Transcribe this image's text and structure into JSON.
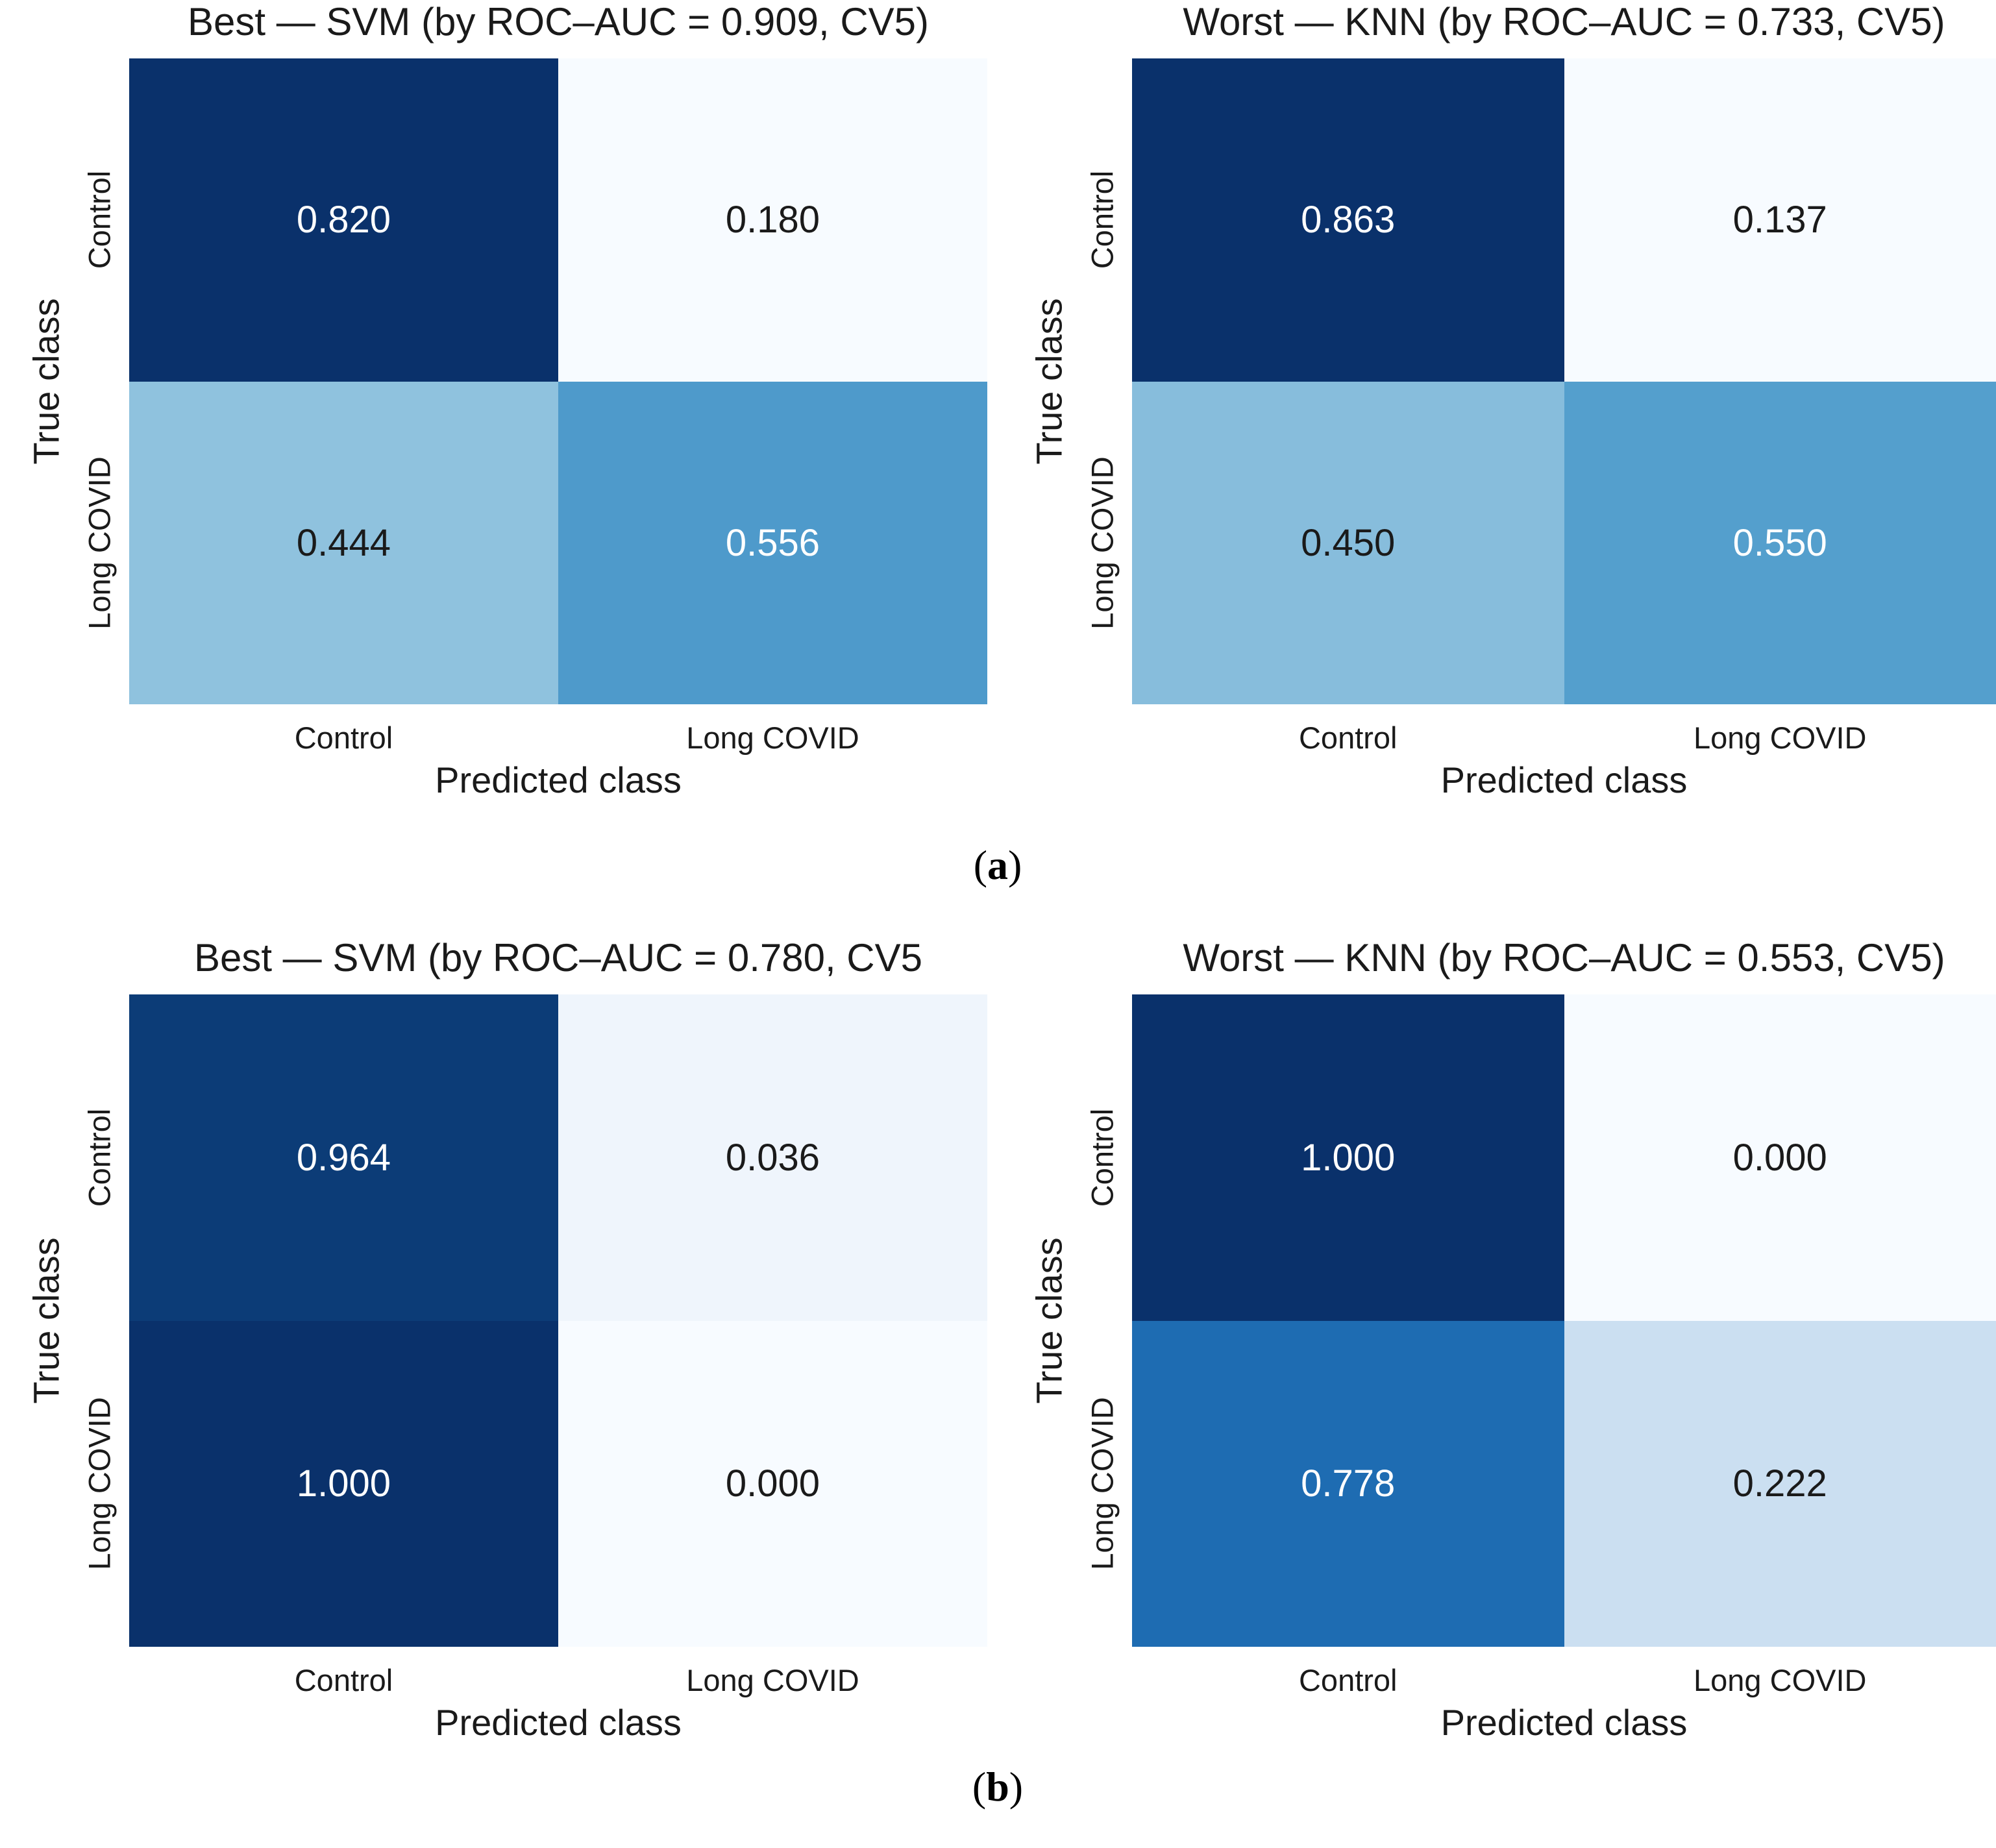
{
  "figure": {
    "background": "#ffffff",
    "panels": [
      {
        "open_paren": "(",
        "letter": "a",
        "close_paren": ")"
      },
      {
        "open_paren": "(",
        "letter": "b",
        "close_paren": ")"
      }
    ]
  },
  "chart_data": [
    {
      "type": "heatmap",
      "panel": "a",
      "position": "left",
      "title": "Best — SVM (by ROC–AUC = 0.909, CV5)",
      "xlabel": "Predicted class",
      "ylabel": "True class",
      "x_categories": [
        "Control",
        "Long COVID"
      ],
      "y_categories": [
        "Control",
        "Long COVID"
      ],
      "values": [
        [
          0.82,
          0.18
        ],
        [
          0.444,
          0.556
        ]
      ],
      "value_labels": [
        [
          "0.820",
          "0.180"
        ],
        [
          "0.444",
          "0.556"
        ]
      ],
      "cell_colors": [
        [
          "#0a316b",
          "#f7fbff"
        ],
        [
          "#8fc2de",
          "#4e9acb"
        ]
      ],
      "text_colors": [
        [
          "#ffffff",
          "#1a1a1a"
        ],
        [
          "#1a1a1a",
          "#ffffff"
        ]
      ],
      "colormap": "Blues",
      "grid": false,
      "legend": false
    },
    {
      "type": "heatmap",
      "panel": "a",
      "position": "right",
      "title": "Worst — KNN (by ROC–AUC = 0.733, CV5)",
      "xlabel": "Predicted class",
      "ylabel": "True class",
      "x_categories": [
        "Control",
        "Long COVID"
      ],
      "y_categories": [
        "Control",
        "Long COVID"
      ],
      "values": [
        [
          0.863,
          0.137
        ],
        [
          0.45,
          0.55
        ]
      ],
      "value_labels": [
        [
          "0.863",
          "0.137"
        ],
        [
          "0.450",
          "0.550"
        ]
      ],
      "cell_colors": [
        [
          "#0a316b",
          "#f7fbff"
        ],
        [
          "#87bddc",
          "#549fcd"
        ]
      ],
      "text_colors": [
        [
          "#ffffff",
          "#1a1a1a"
        ],
        [
          "#1a1a1a",
          "#ffffff"
        ]
      ],
      "colormap": "Blues",
      "grid": false,
      "legend": false
    },
    {
      "type": "heatmap",
      "panel": "b",
      "position": "left",
      "title": "Best — SVM (by ROC–AUC = 0.780, CV5",
      "xlabel": "Predicted class",
      "ylabel": "True class",
      "x_categories": [
        "Control",
        "Long COVID"
      ],
      "y_categories": [
        "Control",
        "Long COVID"
      ],
      "values": [
        [
          0.964,
          0.036
        ],
        [
          1.0,
          0.0
        ]
      ],
      "value_labels": [
        [
          "0.964",
          "0.036"
        ],
        [
          "1.000",
          "0.000"
        ]
      ],
      "cell_colors": [
        [
          "#0c3c77",
          "#eff5fc"
        ],
        [
          "#0a316b",
          "#f7fbff"
        ]
      ],
      "text_colors": [
        [
          "#ffffff",
          "#1a1a1a"
        ],
        [
          "#ffffff",
          "#1a1a1a"
        ]
      ],
      "colormap": "Blues",
      "grid": false,
      "legend": false
    },
    {
      "type": "heatmap",
      "panel": "b",
      "position": "right",
      "title": "Worst — KNN (by ROC–AUC = 0.553, CV5)",
      "xlabel": "Predicted class",
      "ylabel": "True class",
      "x_categories": [
        "Control",
        "Long COVID"
      ],
      "y_categories": [
        "Control",
        "Long COVID"
      ],
      "values": [
        [
          1.0,
          0.0
        ],
        [
          0.778,
          0.222
        ]
      ],
      "value_labels": [
        [
          "1.000",
          "0.000"
        ],
        [
          "0.778",
          "0.222"
        ]
      ],
      "cell_colors": [
        [
          "#0a316b",
          "#f7fbff"
        ],
        [
          "#1e6cb2",
          "#cbdff1"
        ]
      ],
      "text_colors": [
        [
          "#ffffff",
          "#1a1a1a"
        ],
        [
          "#ffffff",
          "#1a1a1a"
        ]
      ],
      "colormap": "Blues",
      "grid": false,
      "legend": false
    }
  ]
}
